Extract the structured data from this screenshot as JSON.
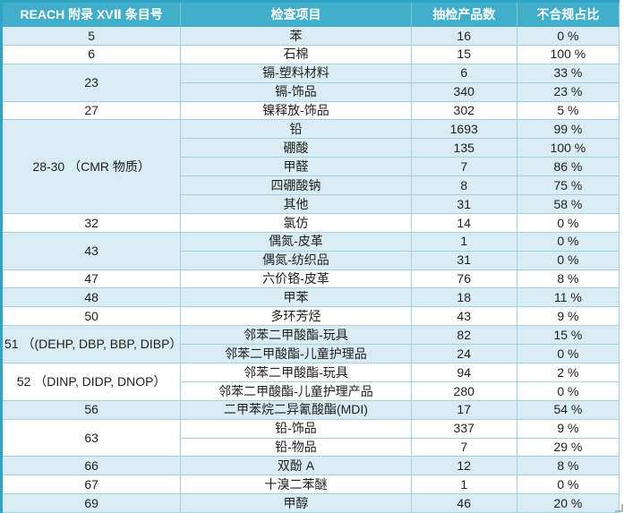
{
  "colors": {
    "header_bg": "#41aecb",
    "header_text": "#ffffff",
    "band_bg": "#d9ecf3",
    "plain_bg": "#ffffff",
    "grid": "#9fd1de",
    "outer": "#2fa3c3",
    "text": "#1f1f1f"
  },
  "table": {
    "headers": [
      "REACH 附录 XVⅡ 条目号",
      "检查项目",
      "抽检产品数",
      "不合规占比"
    ],
    "groups": [
      {
        "entry": "5",
        "band": true,
        "rows": [
          [
            "苯",
            "16",
            "0 %"
          ]
        ]
      },
      {
        "entry": "6",
        "band": false,
        "rows": [
          [
            "石棉",
            "15",
            "100 %"
          ]
        ]
      },
      {
        "entry": "23",
        "band": true,
        "rows": [
          [
            "镉-塑料材料",
            "6",
            "33 %"
          ],
          [
            "镉-饰品",
            "340",
            "23 %"
          ]
        ]
      },
      {
        "entry": "27",
        "band": false,
        "rows": [
          [
            "镍释放-饰品",
            "302",
            "5 %"
          ]
        ]
      },
      {
        "entry": "28-30\n（CMR 物质）",
        "band": true,
        "rows": [
          [
            "铅",
            "1693",
            "99 %"
          ],
          [
            "硼酸",
            "135",
            "100 %"
          ],
          [
            "甲醛",
            "7",
            "86 %"
          ],
          [
            "四硼酸钠",
            "8",
            "75 %"
          ],
          [
            "其他",
            "31",
            "58 %"
          ]
        ]
      },
      {
        "entry": "32",
        "band": false,
        "rows": [
          [
            "氯仿",
            "14",
            "0 %"
          ]
        ]
      },
      {
        "entry": "43",
        "band": true,
        "rows": [
          [
            "偶氮-皮革",
            "1",
            "0 %"
          ],
          [
            "偶氮-纺织品",
            "31",
            "0 %"
          ]
        ]
      },
      {
        "entry": "47",
        "band": false,
        "rows": [
          [
            "六价铬-皮革",
            "76",
            "8 %"
          ]
        ]
      },
      {
        "entry": "48",
        "band": true,
        "rows": [
          [
            "甲苯",
            "18",
            "11 %"
          ]
        ]
      },
      {
        "entry": "50",
        "band": false,
        "rows": [
          [
            "多环芳烃",
            "43",
            "9 %"
          ]
        ]
      },
      {
        "entry": "51\n（(DEHP, DBP, BBP, DIBP）",
        "band": true,
        "rows": [
          [
            "邻苯二甲酸酯-玩具",
            "82",
            "15 %"
          ],
          [
            "邻苯二甲酸酯-儿童护理品",
            "24",
            "0 %"
          ]
        ]
      },
      {
        "entry": "52\n（DINP, DIDP, DNOP）",
        "band": false,
        "rows": [
          [
            "邻苯二甲酸酯-玩具",
            "94",
            "2 %"
          ],
          [
            "邻苯二甲酸酯-儿童护理产品",
            "280",
            "0 %"
          ]
        ]
      },
      {
        "entry": "56",
        "band": true,
        "rows": [
          [
            "二甲苯烷二异氰酸酯(MDI)",
            "17",
            "54 %"
          ]
        ]
      },
      {
        "entry": "63",
        "band": false,
        "rows": [
          [
            "铅-饰品",
            "337",
            "9 %"
          ],
          [
            "铅-物品",
            "7",
            "29 %"
          ]
        ]
      },
      {
        "entry": "66",
        "band": true,
        "rows": [
          [
            "双酚 A",
            "12",
            "8 %"
          ]
        ]
      },
      {
        "entry": "67",
        "band": false,
        "rows": [
          [
            "十溴二苯醚",
            "1",
            "0 %"
          ]
        ]
      },
      {
        "entry": "69",
        "band": true,
        "rows": [
          [
            "甲醇",
            "46",
            "20 %"
          ]
        ]
      }
    ]
  }
}
